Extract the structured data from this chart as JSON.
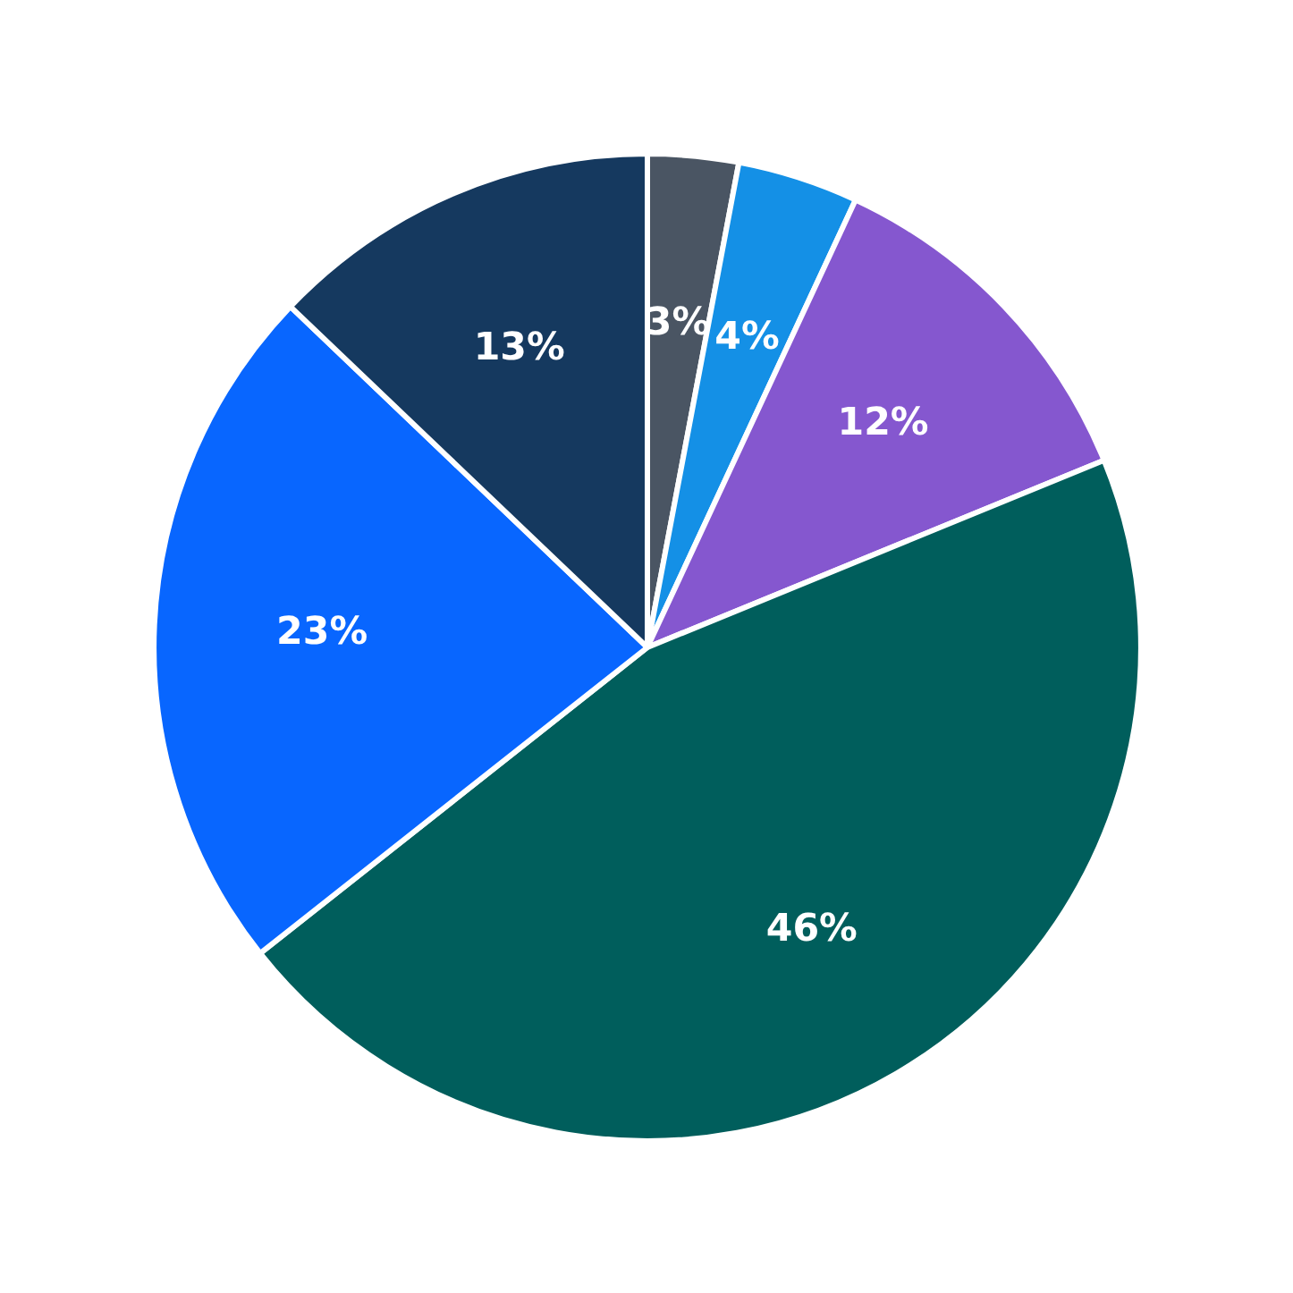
{
  "chart_data": {
    "type": "pie",
    "categories": [
      null,
      null,
      null,
      null,
      null,
      null
    ],
    "values": [
      3,
      4,
      12,
      46,
      23,
      13
    ],
    "colors": [
      "#4a5563",
      "#1490e6",
      "#8557cf",
      "#005e5c",
      "#0866ff",
      "#15395f"
    ],
    "value_labels": [
      "3%",
      "4%",
      "12%",
      "46%",
      "23%",
      "13%"
    ]
  }
}
